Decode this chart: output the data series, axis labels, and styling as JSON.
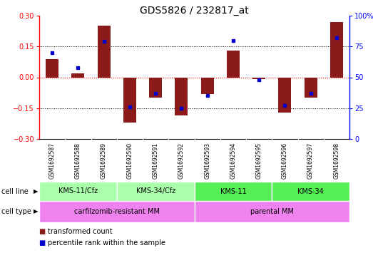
{
  "title": "GDS5826 / 232817_at",
  "samples": [
    "GSM1692587",
    "GSM1692588",
    "GSM1692589",
    "GSM1692590",
    "GSM1692591",
    "GSM1692592",
    "GSM1692593",
    "GSM1692594",
    "GSM1692595",
    "GSM1692596",
    "GSM1692597",
    "GSM1692598"
  ],
  "transformed_count": [
    0.09,
    0.02,
    0.25,
    -0.22,
    -0.1,
    -0.185,
    -0.08,
    0.13,
    -0.01,
    -0.17,
    -0.1,
    0.27
  ],
  "percentile_rank": [
    70,
    58,
    79,
    26,
    37,
    25,
    35,
    80,
    48,
    27,
    37,
    82
  ],
  "ylim_left": [
    -0.3,
    0.3
  ],
  "ylim_right": [
    0,
    100
  ],
  "yticks_left": [
    -0.3,
    -0.15,
    0.0,
    0.15,
    0.3
  ],
  "yticks_right": [
    0,
    25,
    50,
    75,
    100
  ],
  "bar_color": "#8B1A1A",
  "dot_color": "#0000CD",
  "cell_line_groups": [
    {
      "label": "KMS-11/Cfz",
      "start": 0,
      "end": 3,
      "color": "#AAFFAA"
    },
    {
      "label": "KMS-34/Cfz",
      "start": 3,
      "end": 6,
      "color": "#AAFFAA"
    },
    {
      "label": "KMS-11",
      "start": 6,
      "end": 9,
      "color": "#55EE55"
    },
    {
      "label": "KMS-34",
      "start": 9,
      "end": 12,
      "color": "#55EE55"
    }
  ],
  "cell_type_groups": [
    {
      "label": "carfilzomib-resistant MM",
      "start": 0,
      "end": 6,
      "color": "#EE82EE"
    },
    {
      "label": "parental MM",
      "start": 6,
      "end": 12,
      "color": "#EE82EE"
    }
  ],
  "legend_items": [
    {
      "label": "transformed count",
      "color": "#8B1A1A"
    },
    {
      "label": "percentile rank within the sample",
      "color": "#0000CD"
    }
  ],
  "title_fontsize": 10,
  "tick_fontsize": 7,
  "label_fontsize": 7,
  "sample_fontsize": 5.5,
  "background_color": "#ffffff",
  "sample_bg": "#C8C8C8",
  "plot_bg": "#ffffff"
}
